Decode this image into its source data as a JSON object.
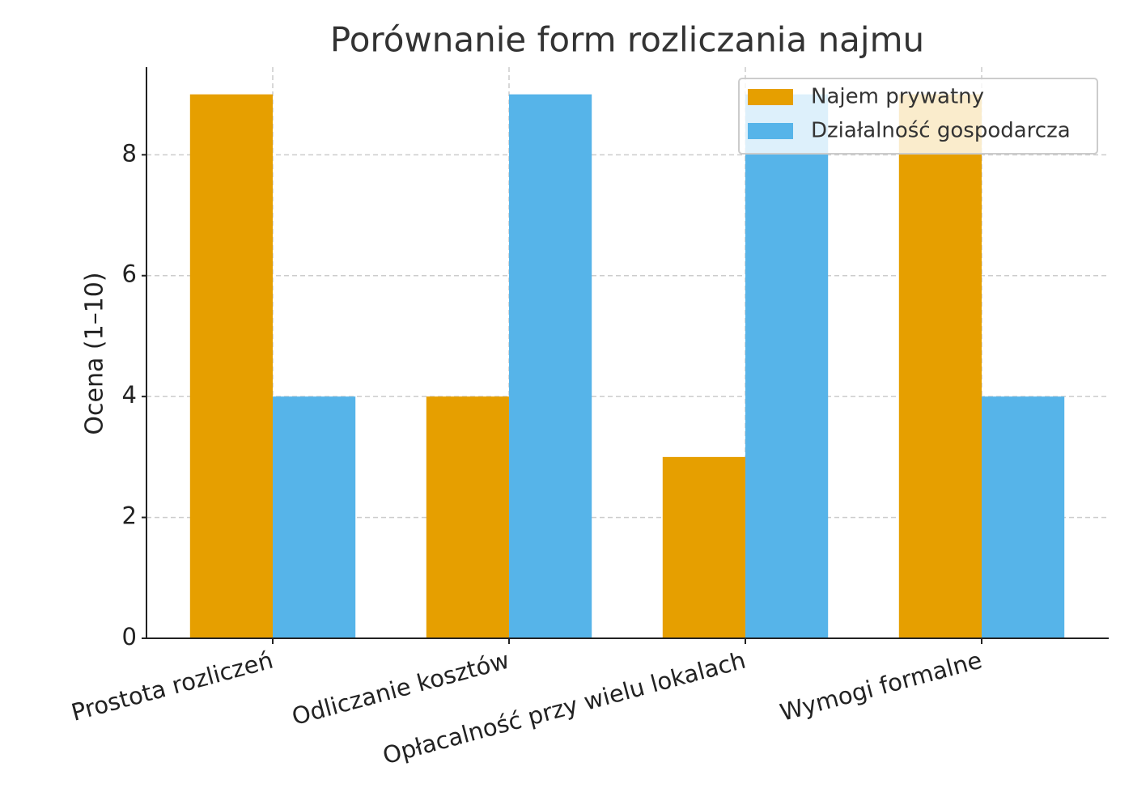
{
  "chart_data": {
    "type": "bar",
    "title": "Porównanie form rozliczania najmu",
    "y_label": "Ocena (1–10)",
    "categories": [
      "Prostota rozliczeń",
      "Odliczanie kosztów",
      "Opłacalność przy wielu lokalach",
      "Wymogi formalne"
    ],
    "series": [
      {
        "name": "Najem prywatny",
        "color": "#e69f00",
        "values": [
          9,
          4,
          3,
          9
        ]
      },
      {
        "name": "Działalność gospodarcza",
        "color": "#56b4e9",
        "values": [
          4,
          9,
          9,
          4
        ]
      }
    ],
    "ylim": [
      0,
      9.45
    ],
    "yticks": [
      0,
      2,
      4,
      6,
      8
    ],
    "grid": true,
    "legend": "upper right"
  }
}
